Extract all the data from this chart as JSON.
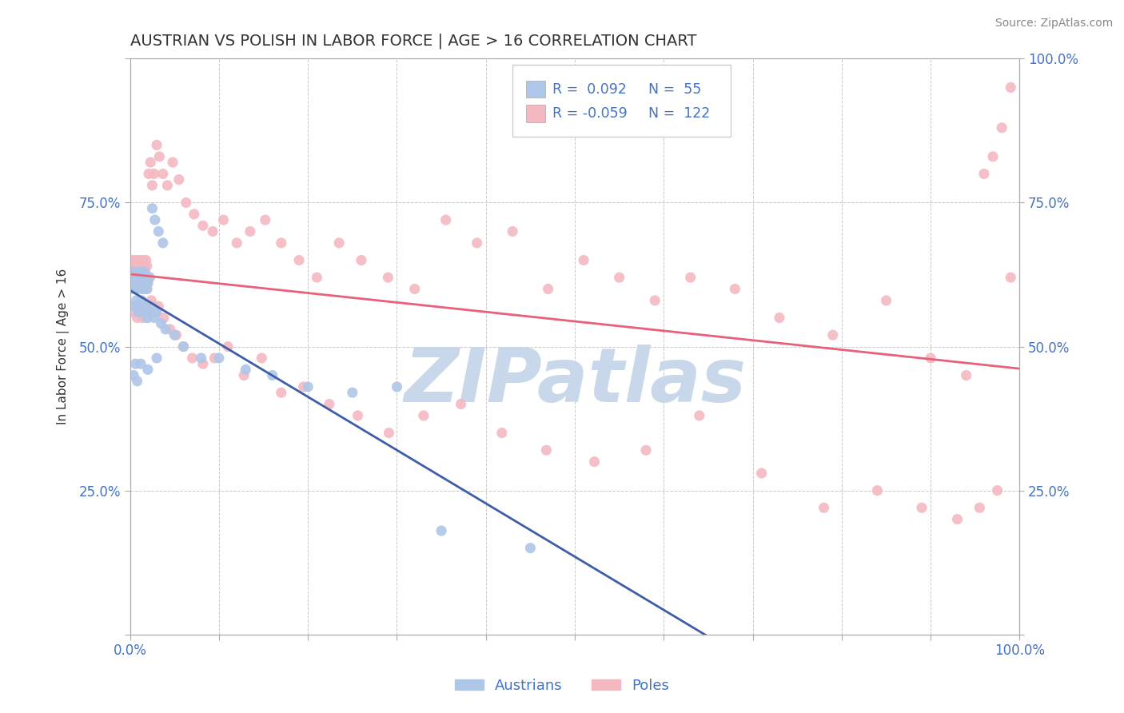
{
  "title": "AUSTRIAN VS POLISH IN LABOR FORCE | AGE > 16 CORRELATION CHART",
  "source": "Source: ZipAtlas.com",
  "ylabel": "In Labor Force | Age > 16",
  "xlim": [
    0.0,
    1.0
  ],
  "ylim": [
    0.0,
    1.0
  ],
  "xtick_positions": [
    0.0,
    0.1,
    0.2,
    0.3,
    0.4,
    0.5,
    0.6,
    0.7,
    0.8,
    0.9,
    1.0
  ],
  "xtick_labels": [
    "0.0%",
    "",
    "",
    "",
    "",
    "",
    "",
    "",
    "",
    "",
    "100.0%"
  ],
  "ytick_positions": [
    0.0,
    0.25,
    0.5,
    0.75,
    1.0
  ],
  "ytick_labels_left": [
    "",
    "25.0%",
    "50.0%",
    "75.0%",
    ""
  ],
  "ytick_labels_right": [
    "",
    "25.0%",
    "50.0%",
    "75.0%",
    "100.0%"
  ],
  "legend_R_austrians": "0.092",
  "legend_N_austrians": "55",
  "legend_R_poles": "-0.059",
  "legend_N_poles": "122",
  "color_austrians": "#aec6e8",
  "color_poles": "#f4b8c1",
  "color_line_austrians": "#3b5ea6",
  "color_line_poles": "#e8607a",
  "background_color": "#ffffff",
  "grid_color": "#bbbbbb",
  "watermark_text": "ZIPAtlas",
  "watermark_color": "#c8d8ea",
  "title_color": "#333333",
  "axis_label_color": "#333333",
  "tick_label_color": "#4472c4",
  "legend_text_color": "#4472c4",
  "source_color": "#888888",
  "austrians_x": [
    0.002,
    0.003,
    0.004,
    0.005,
    0.006,
    0.007,
    0.008,
    0.009,
    0.01,
    0.011,
    0.012,
    0.013,
    0.014,
    0.015,
    0.016,
    0.017,
    0.018,
    0.019,
    0.02,
    0.022,
    0.025,
    0.028,
    0.032,
    0.037,
    0.005,
    0.007,
    0.009,
    0.011,
    0.013,
    0.015,
    0.017,
    0.019,
    0.021,
    0.024,
    0.027,
    0.03,
    0.035,
    0.04,
    0.05,
    0.06,
    0.08,
    0.1,
    0.13,
    0.16,
    0.2,
    0.25,
    0.3,
    0.004,
    0.006,
    0.008,
    0.012,
    0.02,
    0.03,
    0.35,
    0.45
  ],
  "austrians_y": [
    0.62,
    0.61,
    0.63,
    0.6,
    0.62,
    0.61,
    0.6,
    0.62,
    0.61,
    0.63,
    0.62,
    0.61,
    0.6,
    0.62,
    0.63,
    0.61,
    0.62,
    0.6,
    0.61,
    0.62,
    0.74,
    0.72,
    0.7,
    0.68,
    0.57,
    0.58,
    0.56,
    0.57,
    0.58,
    0.56,
    0.57,
    0.55,
    0.56,
    0.57,
    0.55,
    0.56,
    0.54,
    0.53,
    0.52,
    0.5,
    0.48,
    0.48,
    0.46,
    0.45,
    0.43,
    0.42,
    0.43,
    0.45,
    0.47,
    0.44,
    0.47,
    0.46,
    0.48,
    0.18,
    0.15
  ],
  "poles_x": [
    0.002,
    0.003,
    0.004,
    0.005,
    0.006,
    0.007,
    0.008,
    0.009,
    0.01,
    0.011,
    0.012,
    0.013,
    0.014,
    0.015,
    0.016,
    0.017,
    0.018,
    0.019,
    0.02,
    0.022,
    0.003,
    0.004,
    0.005,
    0.006,
    0.007,
    0.008,
    0.009,
    0.01,
    0.011,
    0.012,
    0.013,
    0.014,
    0.015,
    0.016,
    0.017,
    0.018,
    0.019,
    0.021,
    0.023,
    0.025,
    0.027,
    0.03,
    0.033,
    0.037,
    0.042,
    0.048,
    0.055,
    0.063,
    0.072,
    0.082,
    0.093,
    0.105,
    0.12,
    0.135,
    0.152,
    0.17,
    0.19,
    0.21,
    0.235,
    0.26,
    0.29,
    0.32,
    0.355,
    0.39,
    0.43,
    0.47,
    0.51,
    0.55,
    0.59,
    0.63,
    0.68,
    0.73,
    0.79,
    0.85,
    0.9,
    0.94,
    0.96,
    0.97,
    0.98,
    0.99,
    0.004,
    0.006,
    0.008,
    0.01,
    0.012,
    0.014,
    0.016,
    0.018,
    0.02,
    0.024,
    0.028,
    0.032,
    0.038,
    0.045,
    0.052,
    0.06,
    0.07,
    0.082,
    0.095,
    0.11,
    0.128,
    0.148,
    0.17,
    0.195,
    0.224,
    0.256,
    0.291,
    0.33,
    0.372,
    0.418,
    0.468,
    0.522,
    0.58,
    0.64,
    0.71,
    0.78,
    0.84,
    0.89,
    0.93,
    0.955,
    0.975,
    0.99
  ],
  "poles_y": [
    0.62,
    0.61,
    0.63,
    0.6,
    0.62,
    0.61,
    0.6,
    0.62,
    0.61,
    0.63,
    0.62,
    0.61,
    0.6,
    0.62,
    0.63,
    0.61,
    0.62,
    0.6,
    0.61,
    0.62,
    0.65,
    0.64,
    0.63,
    0.65,
    0.64,
    0.63,
    0.65,
    0.64,
    0.63,
    0.65,
    0.64,
    0.63,
    0.65,
    0.64,
    0.63,
    0.65,
    0.64,
    0.8,
    0.82,
    0.78,
    0.8,
    0.85,
    0.83,
    0.8,
    0.78,
    0.82,
    0.79,
    0.75,
    0.73,
    0.71,
    0.7,
    0.72,
    0.68,
    0.7,
    0.72,
    0.68,
    0.65,
    0.62,
    0.68,
    0.65,
    0.62,
    0.6,
    0.72,
    0.68,
    0.7,
    0.6,
    0.65,
    0.62,
    0.58,
    0.62,
    0.6,
    0.55,
    0.52,
    0.58,
    0.48,
    0.45,
    0.8,
    0.83,
    0.88,
    0.95,
    0.56,
    0.57,
    0.55,
    0.56,
    0.57,
    0.55,
    0.56,
    0.57,
    0.55,
    0.58,
    0.56,
    0.57,
    0.55,
    0.53,
    0.52,
    0.5,
    0.48,
    0.47,
    0.48,
    0.5,
    0.45,
    0.48,
    0.42,
    0.43,
    0.4,
    0.38,
    0.35,
    0.38,
    0.4,
    0.35,
    0.32,
    0.3,
    0.32,
    0.38,
    0.28,
    0.22,
    0.25,
    0.22,
    0.2,
    0.22,
    0.25,
    0.62
  ]
}
